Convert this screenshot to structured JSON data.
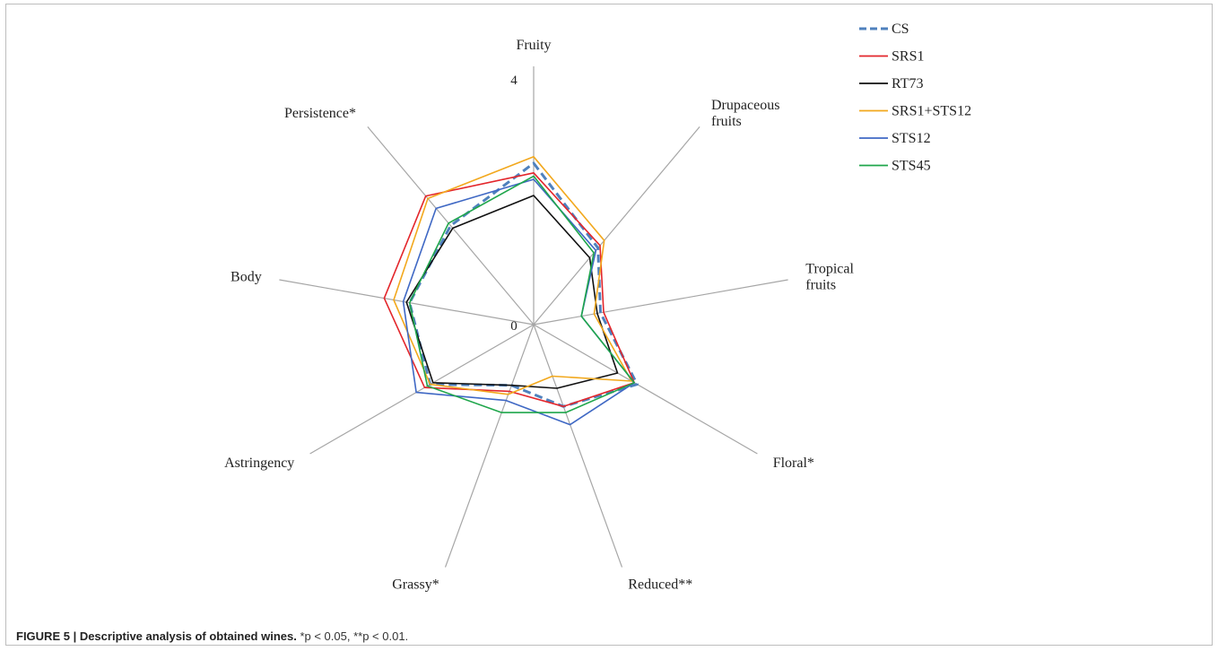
{
  "chart_data": {
    "type": "radar",
    "axes": [
      "Fruity",
      "Drupaceous fruits",
      "Tropical fruits",
      "Floral*",
      "Reduced**",
      "Grassy*",
      "Astringency",
      "Body",
      "Persistence*"
    ],
    "scale_labels": {
      "min": "0",
      "max": "4"
    },
    "rmax": 4,
    "series": [
      {
        "name": "CS",
        "color": "#4f81bd",
        "dashed": true,
        "values": [
          2.5,
          1.55,
          1.05,
          1.85,
          1.35,
          1.0,
          1.85,
          1.95,
          2.0
        ]
      },
      {
        "name": "SRS1",
        "color": "#e3262b",
        "dashed": false,
        "values": [
          2.35,
          1.6,
          1.1,
          1.8,
          1.35,
          1.1,
          1.95,
          2.35,
          2.6
        ]
      },
      {
        "name": "RT73",
        "color": "#111111",
        "dashed": false,
        "values": [
          2.0,
          1.35,
          1.0,
          1.5,
          1.05,
          1.0,
          1.8,
          2.0,
          1.95
        ]
      },
      {
        "name": "SRS1+STS12",
        "color": "#f2a81d",
        "dashed": false,
        "values": [
          2.6,
          1.7,
          0.95,
          1.75,
          0.85,
          1.15,
          1.85,
          2.2,
          2.55
        ]
      },
      {
        "name": "STS12",
        "color": "#3f68c4",
        "dashed": false,
        "values": [
          2.25,
          1.5,
          0.75,
          1.8,
          1.65,
          1.25,
          2.1,
          2.05,
          2.35
        ]
      },
      {
        "name": "STS45",
        "color": "#1fa64b",
        "dashed": false,
        "values": [
          2.3,
          1.45,
          0.75,
          1.8,
          1.45,
          1.45,
          1.9,
          1.95,
          2.05
        ]
      }
    ]
  },
  "caption": {
    "lead": "FIGURE 5 | Descriptive analysis of obtained wines.",
    "note": " *p < 0.05, **p < 0.01."
  }
}
